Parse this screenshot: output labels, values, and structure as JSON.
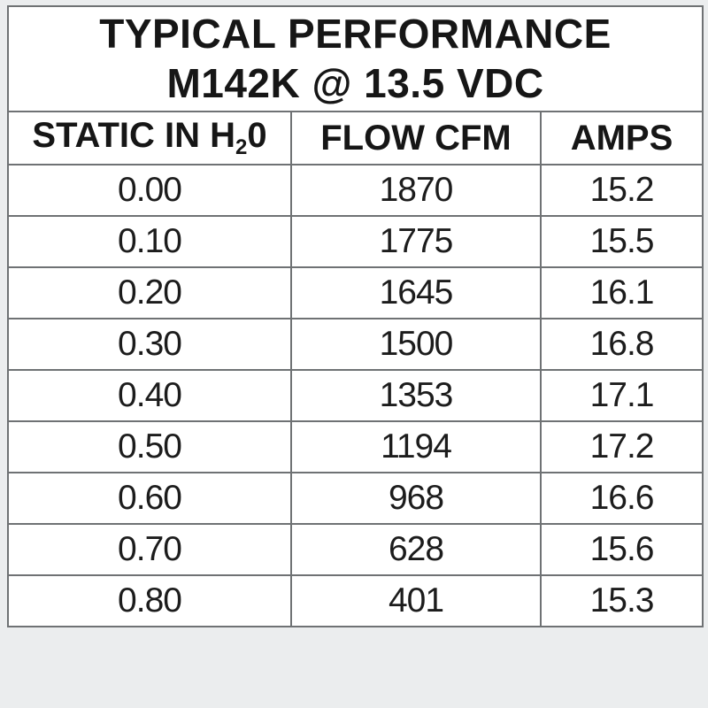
{
  "background_color": "#ebedee",
  "colors": {
    "table_background": "#ffffff",
    "border": "#6f7274",
    "text": "#161616"
  },
  "table": {
    "title_line1": "TYPICAL PERFORMANCE",
    "title_line2": "M142K @ 13.5 VDC",
    "columns": {
      "static": {
        "prefix": "STATIC IN H",
        "sub": "2",
        "suffix": "0"
      },
      "flow": "FLOW CFM",
      "amps": "AMPS"
    },
    "rows": [
      {
        "static": "0.00",
        "flow": "1870",
        "amps": "15.2"
      },
      {
        "static": "0.10",
        "flow": "1775",
        "amps": "15.5"
      },
      {
        "static": "0.20",
        "flow": "1645",
        "amps": "16.1"
      },
      {
        "static": "0.30",
        "flow": "1500",
        "amps": "16.8"
      },
      {
        "static": "0.40",
        "flow": "1353",
        "amps": "17.1"
      },
      {
        "static": "0.50",
        "flow": "1194",
        "amps": "17.2"
      },
      {
        "static": "0.60",
        "flow": "968",
        "amps": "16.6"
      },
      {
        "static": "0.70",
        "flow": "628",
        "amps": "15.6"
      },
      {
        "static": "0.80",
        "flow": "401",
        "amps": "15.3"
      }
    ]
  },
  "chart_data": {
    "type": "table",
    "title": "TYPICAL PERFORMANCE M142K @ 13.5 VDC",
    "columns": [
      "STATIC IN H₂0",
      "FLOW CFM",
      "AMPS"
    ],
    "rows": [
      [
        "0.00",
        1870,
        15.2
      ],
      [
        "0.10",
        1775,
        15.5
      ],
      [
        "0.20",
        1645,
        16.1
      ],
      [
        "0.30",
        1500,
        16.8
      ],
      [
        "0.40",
        1353,
        17.1
      ],
      [
        "0.50",
        1194,
        17.2
      ],
      [
        "0.60",
        968,
        16.6
      ],
      [
        "0.70",
        628,
        15.6
      ],
      [
        "0.80",
        401,
        15.3
      ]
    ]
  }
}
